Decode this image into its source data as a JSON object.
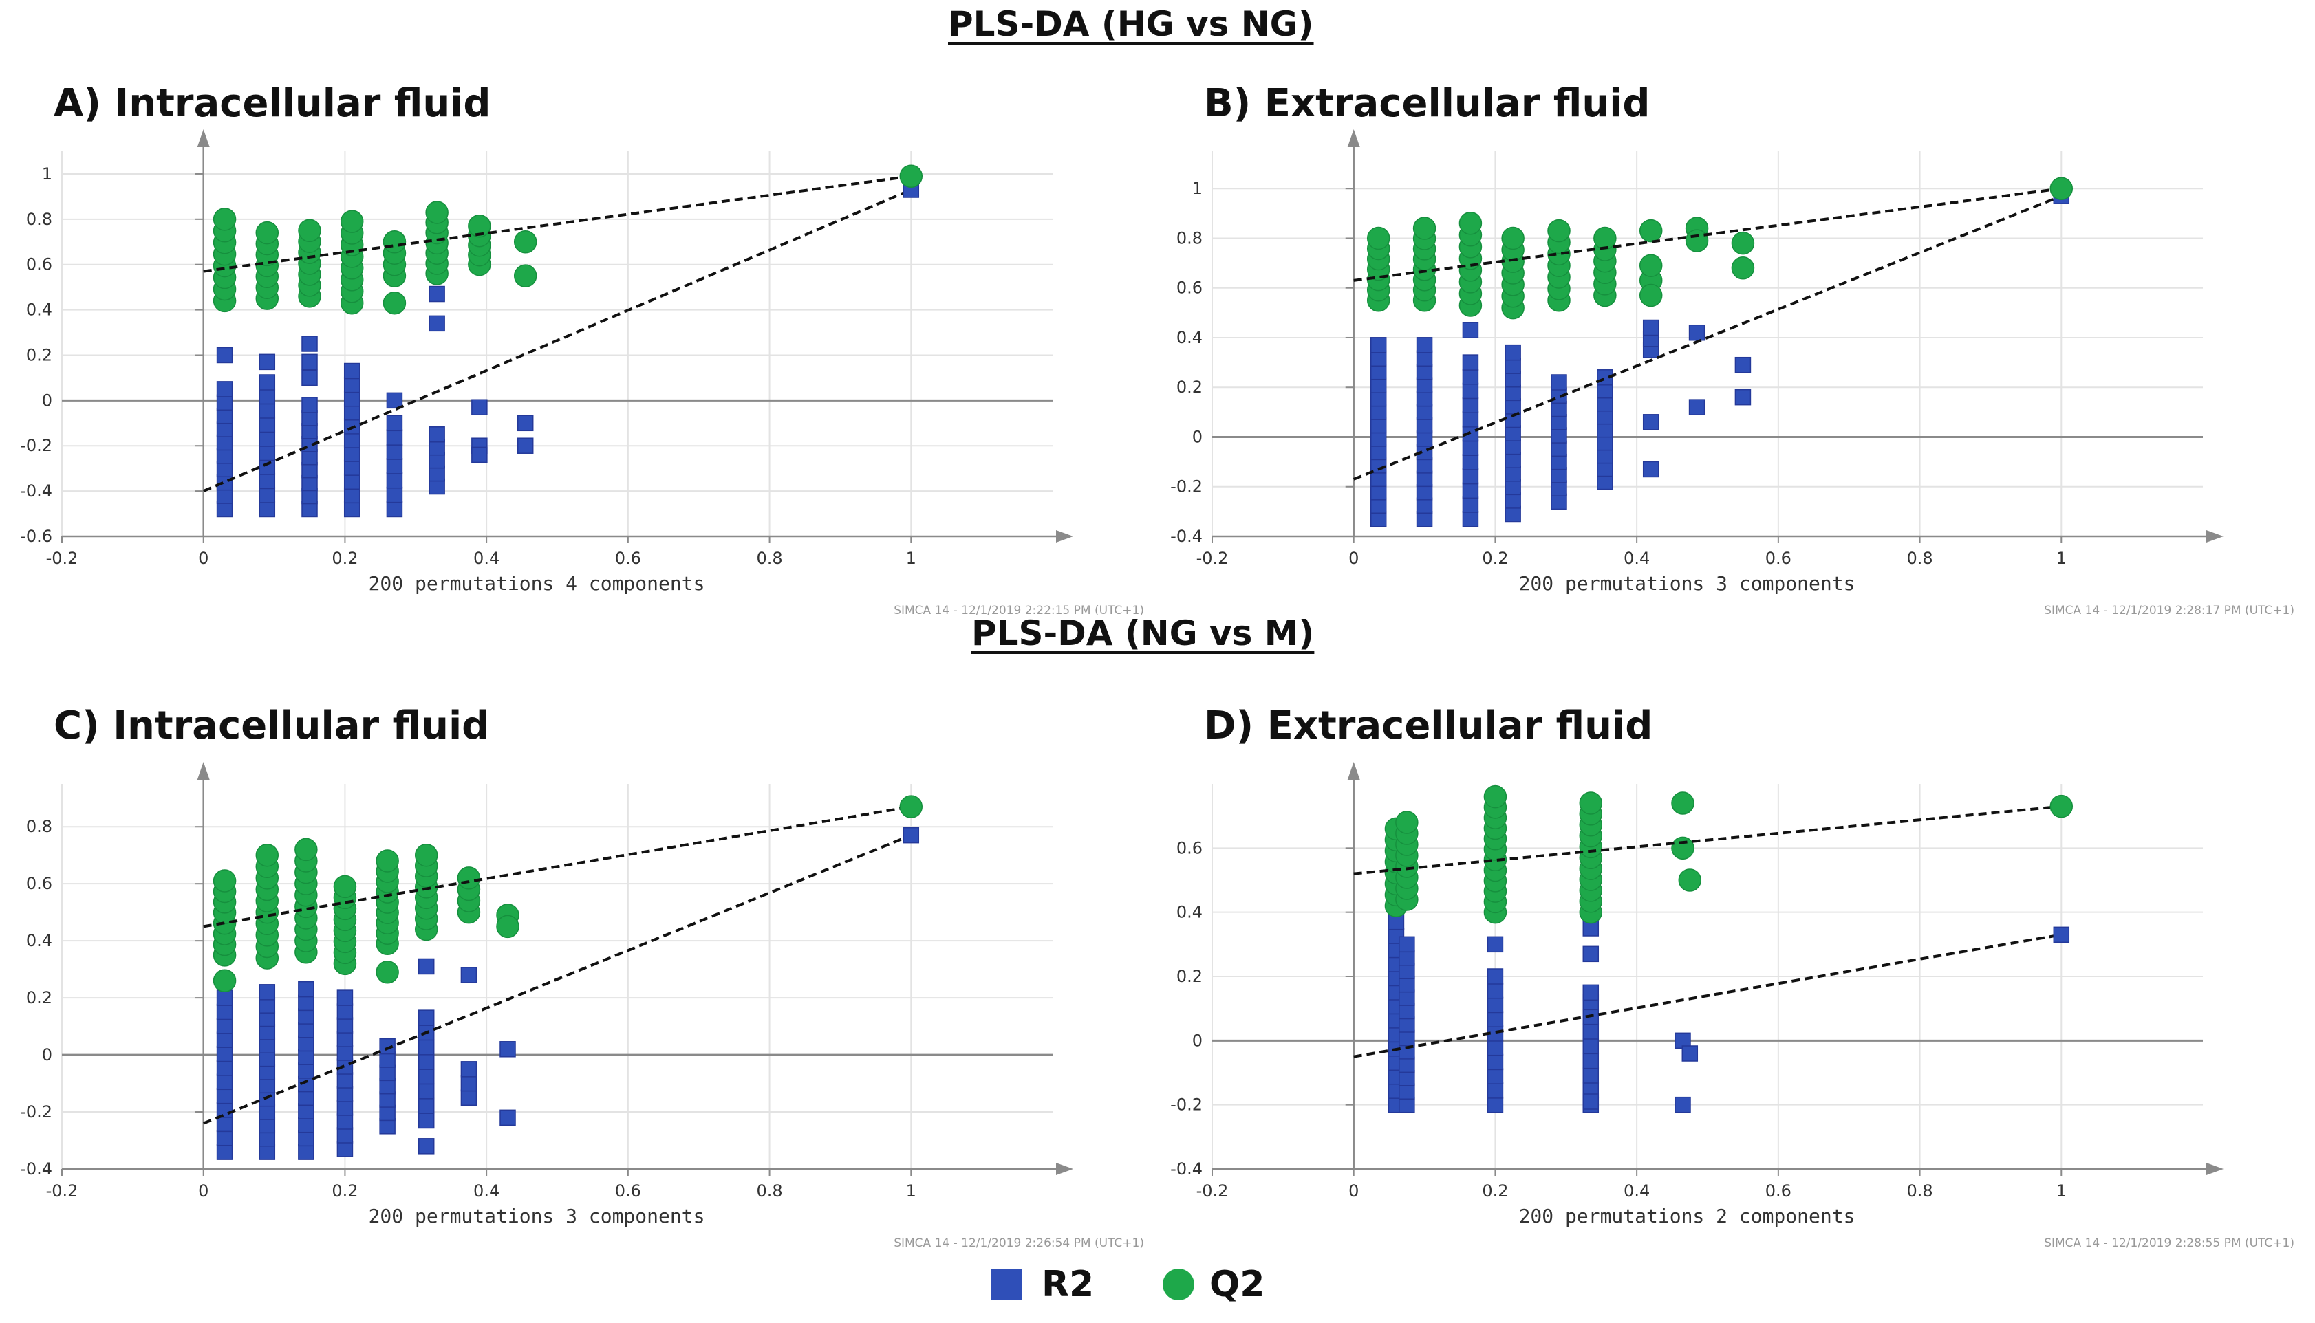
{
  "section_titles": {
    "hg_vs_ng": "PLS-DA (HG vs NG)",
    "ng_vs_m": "PLS-DA (NG vs M)"
  },
  "legend": {
    "r2_label": "R2",
    "q2_label": "Q2"
  },
  "colors": {
    "r2": "#2f4fb8",
    "q2": "#1ea84a",
    "axis": "#8a8a8a",
    "grid": "#e3e3e3",
    "regression": "#111111"
  },
  "chart_data": [
    {
      "panel": "A",
      "type": "scatter",
      "title": "A) Intracellular fluid",
      "xlabel": "200 permutations 4 components",
      "footer": "SIMCA 14 - 12/1/2019 2:22:15 PM (UTC+1)",
      "xlim": [
        -0.2,
        1.2
      ],
      "ylim": [
        -0.6,
        1.1
      ],
      "xticks": [
        -0.2,
        0,
        0.2,
        0.4,
        0.6,
        0.8,
        1
      ],
      "xtick_labels": [
        "-0.2",
        "0",
        "0.2",
        "0.4",
        "0.6",
        "0.8",
        "1"
      ],
      "yticks": [
        -0.6,
        -0.4,
        -0.2,
        0,
        0.2,
        0.4,
        0.6,
        0.8,
        1
      ],
      "ytick_labels": [
        "-0.6",
        "-0.4",
        "-0.2",
        "0",
        "0.2",
        "0.4",
        "0.6",
        "0.8",
        "1"
      ],
      "series": [
        {
          "name": "R2",
          "marker": "square",
          "columns": [
            {
              "x": 0.03,
              "ranges": [
                [
                  -0.48,
                  0.05
                ]
              ],
              "points": [
                0.2
              ]
            },
            {
              "x": 0.09,
              "ranges": [
                [
                  -0.48,
                  0.08
                ]
              ],
              "points": [
                0.17
              ]
            },
            {
              "x": 0.15,
              "ranges": [
                [
                  -0.48,
                  -0.02
                ]
              ],
              "points": [
                0.1,
                0.17,
                0.25
              ]
            },
            {
              "x": 0.21,
              "ranges": [
                [
                  -0.48,
                  0.13
                ]
              ],
              "points": []
            },
            {
              "x": 0.27,
              "ranges": [
                [
                  -0.48,
                  -0.1
                ]
              ],
              "points": [
                0.0
              ]
            },
            {
              "x": 0.33,
              "ranges": [
                [
                  -0.38,
                  -0.15
                ]
              ],
              "points": [
                0.34,
                0.47
              ]
            },
            {
              "x": 0.39,
              "ranges": [],
              "points": [
                -0.03,
                -0.2,
                -0.24
              ]
            },
            {
              "x": 0.455,
              "ranges": [],
              "points": [
                -0.1,
                -0.2
              ]
            }
          ],
          "actual": {
            "x": 1.0,
            "y": 0.93
          }
        },
        {
          "name": "Q2",
          "marker": "circle",
          "columns": [
            {
              "x": 0.03,
              "ranges": [
                [
                  0.44,
                  0.8
                ]
              ],
              "points": []
            },
            {
              "x": 0.09,
              "ranges": [
                [
                  0.45,
                  0.74
                ]
              ],
              "points": []
            },
            {
              "x": 0.15,
              "ranges": [
                [
                  0.46,
                  0.75
                ]
              ],
              "points": []
            },
            {
              "x": 0.21,
              "ranges": [
                [
                  0.43,
                  0.79
                ]
              ],
              "points": []
            },
            {
              "x": 0.27,
              "ranges": [
                [
                  0.55,
                  0.7
                ]
              ],
              "points": [
                0.43
              ]
            },
            {
              "x": 0.33,
              "ranges": [
                [
                  0.56,
                  0.83
                ]
              ],
              "points": []
            },
            {
              "x": 0.39,
              "ranges": [
                [
                  0.6,
                  0.77
                ]
              ],
              "points": []
            },
            {
              "x": 0.455,
              "ranges": [],
              "points": [
                0.7,
                0.55
              ]
            }
          ],
          "actual": {
            "x": 1.0,
            "y": 0.99
          }
        }
      ],
      "regression_lines": [
        {
          "name": "R2",
          "x": [
            0,
            1
          ],
          "y": [
            -0.4,
            0.93
          ]
        },
        {
          "name": "Q2",
          "x": [
            0,
            1
          ],
          "y": [
            0.57,
            0.99
          ]
        }
      ]
    },
    {
      "panel": "B",
      "type": "scatter",
      "title": "B) Extracellular fluid",
      "xlabel": "200 permutations 3 components",
      "footer": "SIMCA 14 - 12/1/2019 2:28:17 PM (UTC+1)",
      "xlim": [
        -0.2,
        1.2
      ],
      "ylim": [
        -0.4,
        1.15
      ],
      "xticks": [
        -0.2,
        0,
        0.2,
        0.4,
        0.6,
        0.8,
        1
      ],
      "xtick_labels": [
        "-0.2",
        "0",
        "0.2",
        "0.4",
        "0.6",
        "0.8",
        "1"
      ],
      "yticks": [
        -0.4,
        -0.2,
        0,
        0.2,
        0.4,
        0.6,
        0.8,
        1
      ],
      "ytick_labels": [
        "-0.4",
        "-0.2",
        "0",
        "0.2",
        "0.4",
        "0.6",
        "0.8",
        "1"
      ],
      "series": [
        {
          "name": "R2",
          "marker": "square",
          "columns": [
            {
              "x": 0.035,
              "ranges": [
                [
                  -0.33,
                  0.37
                ]
              ],
              "points": []
            },
            {
              "x": 0.1,
              "ranges": [
                [
                  -0.33,
                  0.37
                ]
              ],
              "points": []
            },
            {
              "x": 0.165,
              "ranges": [
                [
                  -0.33,
                  0.3
                ]
              ],
              "points": [
                0.43
              ]
            },
            {
              "x": 0.225,
              "ranges": [
                [
                  -0.31,
                  0.34
                ]
              ],
              "points": []
            },
            {
              "x": 0.29,
              "ranges": [
                [
                  -0.26,
                  0.22
                ]
              ],
              "points": []
            },
            {
              "x": 0.355,
              "ranges": [
                [
                  -0.18,
                  0.24
                ]
              ],
              "points": []
            },
            {
              "x": 0.42,
              "ranges": [
                [
                  0.35,
                  0.44
                ]
              ],
              "points": [
                0.06,
                -0.13
              ]
            },
            {
              "x": 0.485,
              "ranges": [],
              "points": [
                0.42,
                0.12
              ]
            },
            {
              "x": 0.55,
              "ranges": [],
              "points": [
                0.29,
                0.16
              ]
            }
          ],
          "actual": {
            "x": 1.0,
            "y": 0.97
          }
        },
        {
          "name": "Q2",
          "marker": "circle",
          "columns": [
            {
              "x": 0.035,
              "ranges": [
                [
                  0.55,
                  0.8
                ]
              ],
              "points": []
            },
            {
              "x": 0.1,
              "ranges": [
                [
                  0.55,
                  0.84
                ]
              ],
              "points": []
            },
            {
              "x": 0.165,
              "ranges": [
                [
                  0.53,
                  0.86
                ]
              ],
              "points": []
            },
            {
              "x": 0.225,
              "ranges": [
                [
                  0.52,
                  0.8
                ]
              ],
              "points": []
            },
            {
              "x": 0.29,
              "ranges": [
                [
                  0.55,
                  0.83
                ]
              ],
              "points": []
            },
            {
              "x": 0.355,
              "ranges": [
                [
                  0.57,
                  0.8
                ]
              ],
              "points": []
            },
            {
              "x": 0.42,
              "ranges": [
                [
                  0.63,
                  0.69
                ]
              ],
              "points": [
                0.83,
                0.57
              ]
            },
            {
              "x": 0.485,
              "ranges": [],
              "points": [
                0.84,
                0.79
              ]
            },
            {
              "x": 0.55,
              "ranges": [],
              "points": [
                0.78,
                0.68
              ]
            }
          ],
          "actual": {
            "x": 1.0,
            "y": 1.0
          }
        }
      ],
      "regression_lines": [
        {
          "name": "R2",
          "x": [
            0,
            1
          ],
          "y": [
            -0.17,
            0.97
          ]
        },
        {
          "name": "Q2",
          "x": [
            0,
            1
          ],
          "y": [
            0.63,
            1.0
          ]
        }
      ]
    },
    {
      "panel": "C",
      "type": "scatter",
      "title": "C) Intracellular fluid",
      "xlabel": "200 permutations 3 components",
      "footer": "SIMCA 14 - 12/1/2019 2:26:54 PM (UTC+1)",
      "xlim": [
        -0.2,
        1.2
      ],
      "ylim": [
        -0.4,
        0.95
      ],
      "xticks": [
        -0.2,
        0,
        0.2,
        0.4,
        0.6,
        0.8,
        1
      ],
      "xtick_labels": [
        "-0.2",
        "0",
        "0.2",
        "0.4",
        "0.6",
        "0.8",
        "1"
      ],
      "yticks": [
        -0.4,
        -0.2,
        0,
        0.2,
        0.4,
        0.6,
        0.8
      ],
      "ytick_labels": [
        "-0.4",
        "-0.2",
        "0",
        "0.2",
        "0.4",
        "0.6",
        "0.8"
      ],
      "series": [
        {
          "name": "R2",
          "marker": "square",
          "columns": [
            {
              "x": 0.03,
              "ranges": [
                [
                  -0.34,
                  0.2
                ]
              ],
              "points": []
            },
            {
              "x": 0.09,
              "ranges": [
                [
                  -0.34,
                  0.22
                ]
              ],
              "points": []
            },
            {
              "x": 0.145,
              "ranges": [
                [
                  -0.34,
                  0.23
                ]
              ],
              "points": []
            },
            {
              "x": 0.2,
              "ranges": [
                [
                  -0.33,
                  0.2
                ]
              ],
              "points": []
            },
            {
              "x": 0.26,
              "ranges": [
                [
                  -0.25,
                  0.03
                ]
              ],
              "points": []
            },
            {
              "x": 0.315,
              "ranges": [
                [
                  -0.23,
                  0.13
                ]
              ],
              "points": [
                0.31,
                -0.32
              ]
            },
            {
              "x": 0.375,
              "ranges": [
                [
                  -0.15,
                  -0.05
                ]
              ],
              "points": [
                0.28
              ]
            },
            {
              "x": 0.43,
              "ranges": [],
              "points": [
                0.02,
                -0.22
              ]
            }
          ],
          "actual": {
            "x": 1.0,
            "y": 0.77
          }
        },
        {
          "name": "Q2",
          "marker": "circle",
          "columns": [
            {
              "x": 0.03,
              "ranges": [
                [
                  0.35,
                  0.61
                ]
              ],
              "points": [
                0.26
              ]
            },
            {
              "x": 0.09,
              "ranges": [
                [
                  0.34,
                  0.7
                ]
              ],
              "points": []
            },
            {
              "x": 0.145,
              "ranges": [
                [
                  0.36,
                  0.72
                ]
              ],
              "points": []
            },
            {
              "x": 0.2,
              "ranges": [
                [
                  0.32,
                  0.59
                ]
              ],
              "points": []
            },
            {
              "x": 0.26,
              "ranges": [
                [
                  0.39,
                  0.68
                ]
              ],
              "points": [
                0.29
              ]
            },
            {
              "x": 0.315,
              "ranges": [
                [
                  0.44,
                  0.7
                ]
              ],
              "points": []
            },
            {
              "x": 0.375,
              "ranges": [
                [
                  0.5,
                  0.62
                ]
              ],
              "points": []
            },
            {
              "x": 0.43,
              "ranges": [],
              "points": [
                0.49,
                0.45
              ]
            }
          ],
          "actual": {
            "x": 1.0,
            "y": 0.87
          }
        }
      ],
      "regression_lines": [
        {
          "name": "R2",
          "x": [
            0,
            1
          ],
          "y": [
            -0.24,
            0.77
          ]
        },
        {
          "name": "Q2",
          "x": [
            0,
            1
          ],
          "y": [
            0.45,
            0.87
          ]
        }
      ]
    },
    {
      "panel": "D",
      "type": "scatter",
      "title": "D) Extracellular fluid",
      "xlabel": "200 permutations 2 components",
      "footer": "SIMCA 14 - 12/1/2019 2:28:55 PM (UTC+1)",
      "xlim": [
        -0.2,
        1.2
      ],
      "ylim": [
        -0.4,
        0.8
      ],
      "xticks": [
        -0.2,
        0,
        0.2,
        0.4,
        0.6,
        0.8,
        1
      ],
      "xtick_labels": [
        "-0.2",
        "0",
        "0.2",
        "0.4",
        "0.6",
        "0.8",
        "1"
      ],
      "yticks": [
        -0.4,
        -0.2,
        0,
        0.2,
        0.4,
        0.6
      ],
      "ytick_labels": [
        "-0.4",
        "-0.2",
        "0",
        "0.2",
        "0.4",
        "0.6"
      ],
      "series": [
        {
          "name": "R2",
          "marker": "square",
          "columns": [
            {
              "x": 0.06,
              "ranges": [
                [
                  -0.2,
                  0.37
                ]
              ],
              "points": []
            },
            {
              "x": 0.075,
              "ranges": [
                [
                  -0.2,
                  0.3
                ]
              ],
              "points": []
            },
            {
              "x": 0.2,
              "ranges": [
                [
                  -0.2,
                  0.2
                ]
              ],
              "points": [
                0.3
              ]
            },
            {
              "x": 0.335,
              "ranges": [
                [
                  -0.2,
                  0.12
                ]
              ],
              "points": [
                0.35,
                0.27,
                0.15,
                -0.19
              ]
            },
            {
              "x": 0.465,
              "ranges": [],
              "points": [
                0.0,
                -0.2
              ]
            },
            {
              "x": 0.475,
              "ranges": [],
              "points": [
                -0.04
              ]
            }
          ],
          "actual": {
            "x": 1.0,
            "y": 0.33
          }
        },
        {
          "name": "Q2",
          "marker": "circle",
          "columns": [
            {
              "x": 0.06,
              "ranges": [
                [
                  0.42,
                  0.66
                ]
              ],
              "points": []
            },
            {
              "x": 0.075,
              "ranges": [
                [
                  0.44,
                  0.68
                ]
              ],
              "points": []
            },
            {
              "x": 0.2,
              "ranges": [
                [
                  0.4,
                  0.76
                ]
              ],
              "points": []
            },
            {
              "x": 0.335,
              "ranges": [
                [
                  0.4,
                  0.74
                ]
              ],
              "points": []
            },
            {
              "x": 0.465,
              "ranges": [],
              "points": [
                0.74,
                0.6
              ]
            },
            {
              "x": 0.475,
              "ranges": [],
              "points": [
                0.5
              ]
            }
          ],
          "actual": {
            "x": 1.0,
            "y": 0.73
          }
        }
      ],
      "regression_lines": [
        {
          "name": "R2",
          "x": [
            0,
            1
          ],
          "y": [
            -0.05,
            0.33
          ]
        },
        {
          "name": "Q2",
          "x": [
            0,
            1
          ],
          "y": [
            0.52,
            0.73
          ]
        }
      ]
    }
  ]
}
